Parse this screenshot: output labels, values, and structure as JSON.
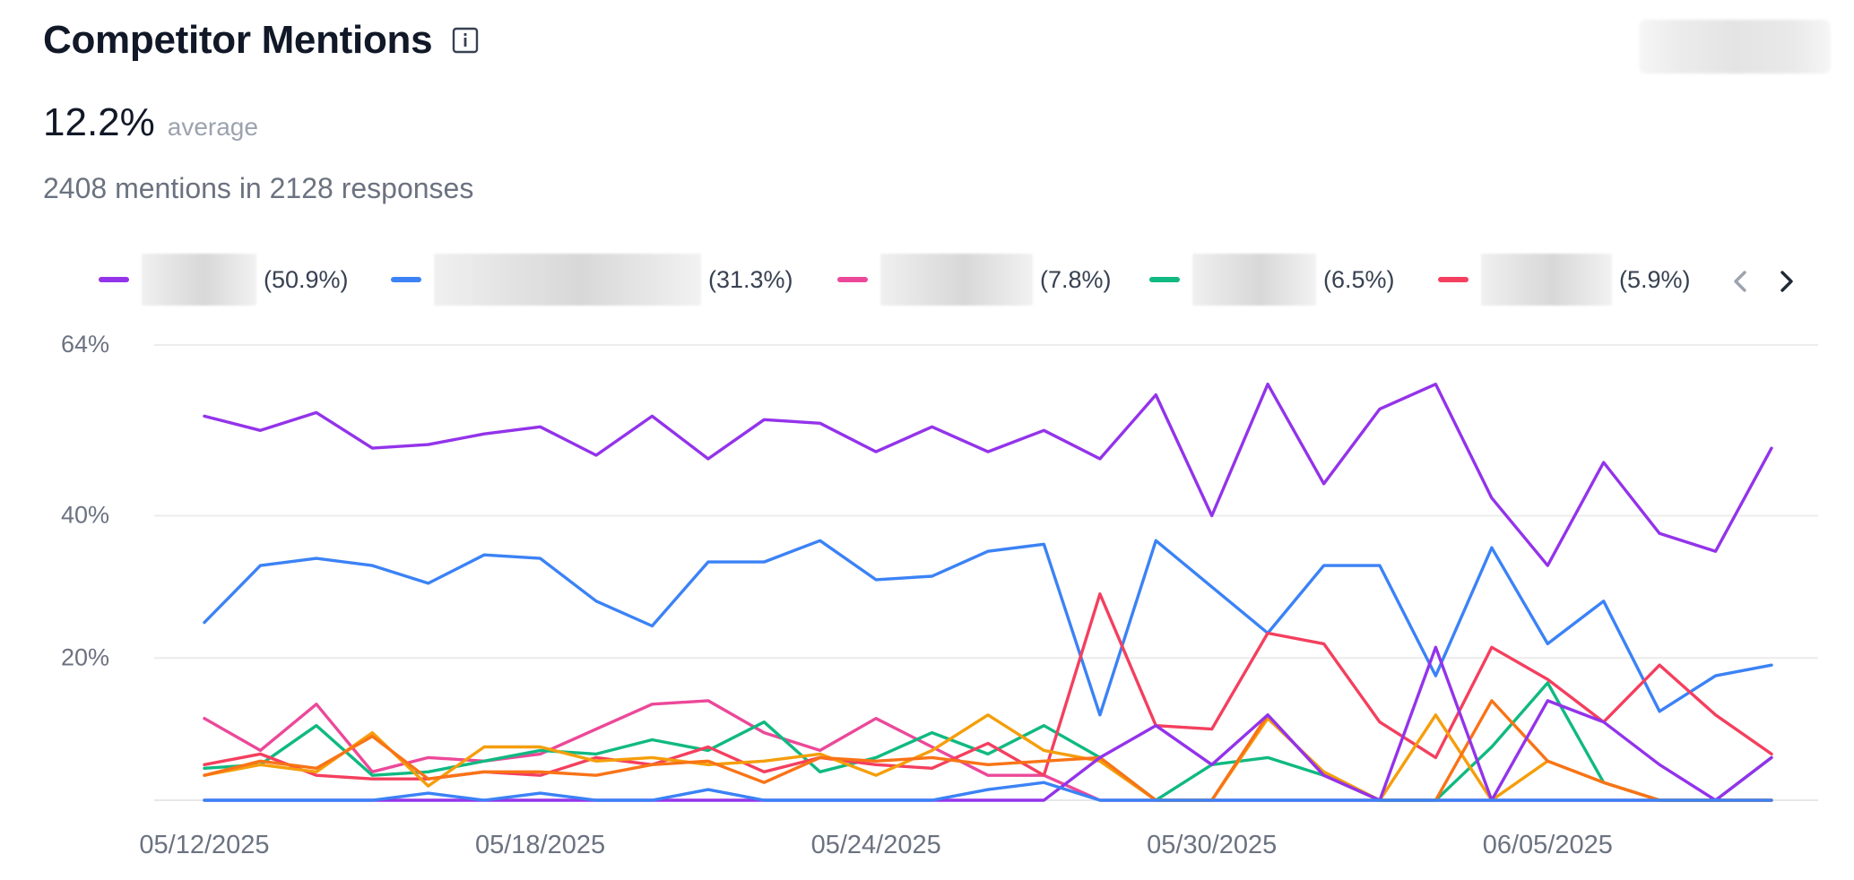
{
  "header": {
    "title": "Competitor Mentions",
    "info_icon": "info-icon",
    "average_value": "12.2%",
    "average_label": "average",
    "summary": "2408 mentions in 2128 responses"
  },
  "legend": {
    "items": [
      {
        "name": "",
        "share": "(50.9%)",
        "color": "#9333ea"
      },
      {
        "name": "",
        "share": "(31.3%)",
        "color": "#3b82f6"
      },
      {
        "name": "",
        "share": "(7.8%)",
        "color": "#ec4899"
      },
      {
        "name": "",
        "share": "(6.5%)",
        "color": "#10b981"
      },
      {
        "name": "",
        "share": "(5.9%)",
        "color": "#f43f5e"
      }
    ],
    "prev_icon": "chevron-left-icon",
    "next_icon": "chevron-right-icon"
  },
  "chart_data": {
    "type": "line",
    "ylim": [
      0,
      64
    ],
    "y_ticks": [
      20,
      40,
      64
    ],
    "y_tick_labels": [
      "20%",
      "40%",
      "64%"
    ],
    "x_tick_labels": [
      "05/12/2025",
      "05/18/2025",
      "05/24/2025",
      "05/30/2025",
      "06/05/2025"
    ],
    "x_tick_indices": [
      0,
      6,
      12,
      18,
      24
    ],
    "grid": true,
    "series": [
      {
        "color": "#9333ea",
        "values": [
          54,
          52,
          54.5,
          49.5,
          50,
          51.5,
          52.5,
          48.5,
          54,
          48,
          53.5,
          53,
          49,
          52.5,
          49,
          52,
          48,
          57,
          40,
          58.5,
          44.5,
          55,
          58.5,
          42.5,
          33,
          47.5,
          37.5,
          35,
          49.5
        ]
      },
      {
        "color": "#3b82f6",
        "values": [
          25,
          33,
          34,
          33,
          30.5,
          34.5,
          34,
          28,
          24.5,
          33.5,
          33.5,
          36.5,
          31,
          31.5,
          35,
          36,
          12,
          36.5,
          30,
          23.5,
          33,
          33,
          17.5,
          35.5,
          22,
          28,
          12.5,
          17.5,
          19
        ]
      },
      {
        "color": "#ec4899",
        "values": [
          11.5,
          7,
          13.5,
          4,
          6,
          5.5,
          6.5,
          10,
          13.5,
          14,
          9.5,
          7,
          11.5,
          7.5,
          3.5,
          3.5,
          0,
          0,
          0,
          0,
          0,
          0,
          0,
          0,
          0,
          0,
          0,
          0,
          0
        ]
      },
      {
        "color": "#10b981",
        "values": [
          4.5,
          5,
          10.5,
          3.5,
          4,
          5.5,
          7,
          6.5,
          8.5,
          7,
          11,
          4,
          6,
          9.5,
          6.5,
          10.5,
          6,
          0,
          5,
          6,
          3.5,
          0,
          0,
          7.5,
          16.5,
          2.5,
          0,
          0,
          6
        ]
      },
      {
        "color": "#f43f5e",
        "values": [
          5,
          6.5,
          3.5,
          3,
          3,
          4,
          3.5,
          6,
          5,
          7.5,
          4,
          6,
          5,
          4.5,
          8,
          3.5,
          29,
          10.5,
          10,
          23.5,
          22,
          11,
          6,
          21.5,
          17,
          11,
          19,
          12,
          6.5
        ]
      },
      {
        "color": "#f59e0b",
        "values": [
          3.5,
          5,
          4,
          9.5,
          2,
          7.5,
          7.5,
          5.5,
          6,
          5,
          5.5,
          6.5,
          3.5,
          7,
          12,
          7,
          5.5,
          0,
          0,
          11.5,
          4,
          0,
          12,
          0,
          5.5,
          2.5,
          0,
          0,
          0
        ]
      },
      {
        "color": "#f97316",
        "values": [
          3.5,
          5.5,
          4.5,
          9,
          3,
          4,
          4,
          3.5,
          5,
          5.5,
          2.5,
          6,
          5.5,
          6,
          5,
          5.5,
          6,
          0,
          0,
          12,
          3.5,
          0,
          0,
          14,
          5.5,
          2.5,
          0,
          0,
          0
        ]
      },
      {
        "color": "#9333ea",
        "values": [
          0,
          0,
          0,
          0,
          0,
          0,
          0,
          0,
          0,
          0,
          0,
          0,
          0,
          0,
          0,
          0,
          6,
          10.5,
          5,
          12,
          3.5,
          0,
          21.5,
          0,
          14,
          11,
          5,
          0,
          6
        ]
      },
      {
        "color": "#3b82f6",
        "values": [
          0,
          0,
          0,
          0,
          1,
          0,
          1,
          0,
          0,
          1.5,
          0,
          0,
          0,
          0,
          1.5,
          2.5,
          0,
          0,
          0,
          0,
          0,
          0,
          0,
          0,
          0,
          0,
          0,
          0,
          0
        ]
      }
    ]
  }
}
